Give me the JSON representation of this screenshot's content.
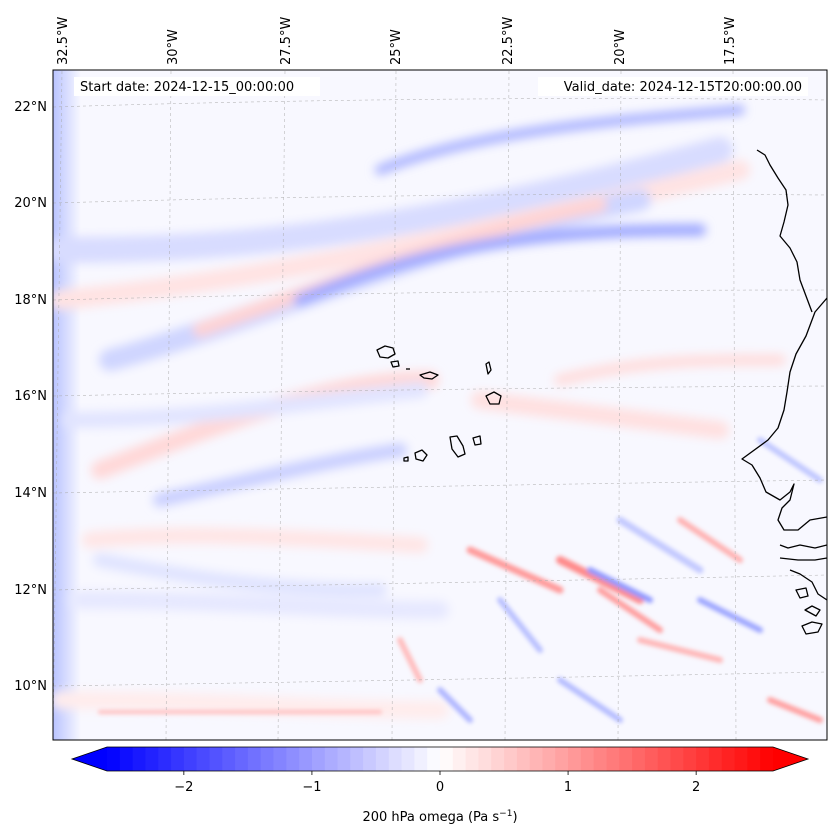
{
  "map": {
    "projection": "lambert-conformal",
    "start_date_text": "Start date: 2024-12-15_00:00:00",
    "valid_date_text": "Valid_date: 2024-12-15T20:00:00.00",
    "lon_labels": [
      "32.5°W",
      "30°W",
      "27.5°W",
      "25°W",
      "22.5°W",
      "20°W",
      "17.5°W"
    ],
    "lat_labels": [
      "22°N",
      "20°N",
      "18°N",
      "16°N",
      "14°N",
      "12°N",
      "10°N"
    ],
    "gridlines": true,
    "field_name": "200 hPa omega",
    "coastlines": "Cabo Verde islands and West African coast (Senegal, Gambia, Guinea-Bissau)"
  },
  "colorbar": {
    "label_main": "200 hPa omega (Pa s",
    "label_sup": "−1",
    "label_close": ")",
    "tick_values": [
      -2,
      -1,
      0,
      1,
      2
    ],
    "tick_labels": [
      "−2",
      "−1",
      "0",
      "1",
      "2"
    ],
    "range": [
      -2.6,
      2.6
    ],
    "extend": "both",
    "colormap": "bwr",
    "color_low": "#0000ff",
    "color_mid": "#ffffff",
    "color_high": "#ff0000"
  }
}
